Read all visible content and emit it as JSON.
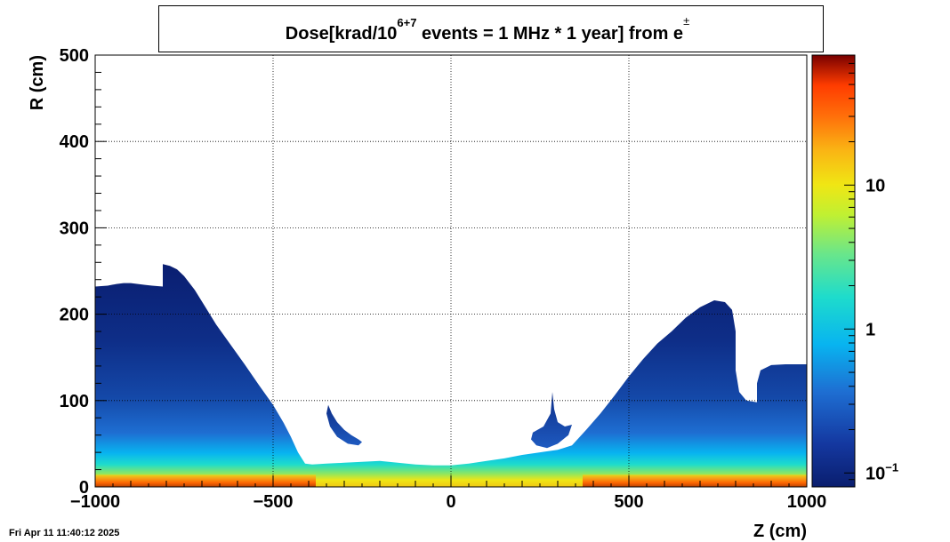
{
  "chart_data": {
    "type": "heatmap",
    "title": {
      "main": "Dose[krad/10",
      "sup": "6+7",
      "rest": " events = 1 MHz * 1 year] from e",
      "charge": "±"
    },
    "xlabel": "Z (cm)",
    "ylabel": "R (cm)",
    "xlim": [
      -1000,
      1000
    ],
    "ylim": [
      0,
      500
    ],
    "x_ticks": [
      {
        "v": -1000,
        "label": "−1000"
      },
      {
        "v": -500,
        "label": "−500"
      },
      {
        "v": 0,
        "label": "0"
      },
      {
        "v": 500,
        "label": "500"
      },
      {
        "v": 1000,
        "label": "1000"
      }
    ],
    "y_ticks": [
      {
        "v": 0,
        "label": "0"
      },
      {
        "v": 100,
        "label": "100"
      },
      {
        "v": 200,
        "label": "200"
      },
      {
        "v": 300,
        "label": "300"
      },
      {
        "v": 400,
        "label": "400"
      },
      {
        "v": 500,
        "label": "500"
      }
    ],
    "grid": true,
    "colorbar": {
      "scale": "log",
      "range": [
        0.08,
        80
      ],
      "labels": [
        {
          "v": 0.1,
          "base": "10",
          "exp": "−1"
        },
        {
          "v": 1,
          "base": "1",
          "exp": ""
        },
        {
          "v": 10,
          "base": "10",
          "exp": ""
        }
      ]
    },
    "regions": [
      {
        "name": "left-endcap",
        "outline_zr": [
          [
            -1000,
            0
          ],
          [
            -1000,
            232
          ],
          [
            -965,
            233
          ],
          [
            -940,
            235
          ],
          [
            -920,
            236
          ],
          [
            -900,
            236
          ],
          [
            -880,
            235
          ],
          [
            -860,
            234
          ],
          [
            -840,
            233
          ],
          [
            -810,
            232
          ],
          [
            -810,
            258
          ],
          [
            -790,
            256
          ],
          [
            -770,
            252
          ],
          [
            -750,
            244
          ],
          [
            -720,
            228
          ],
          [
            -690,
            208
          ],
          [
            -660,
            188
          ],
          [
            -620,
            165
          ],
          [
            -580,
            142
          ],
          [
            -540,
            118
          ],
          [
            -500,
            95
          ],
          [
            -470,
            74
          ],
          [
            -450,
            58
          ],
          [
            -430,
            40
          ],
          [
            -410,
            27
          ],
          [
            -390,
            26
          ],
          [
            -350,
            27
          ],
          [
            -300,
            28
          ],
          [
            -250,
            29
          ],
          [
            -200,
            30
          ],
          [
            -150,
            28
          ],
          [
            -100,
            26
          ],
          [
            -50,
            25
          ],
          [
            0,
            25
          ],
          [
            0,
            0
          ]
        ]
      },
      {
        "name": "right-endcap",
        "outline_zr": [
          [
            0,
            0
          ],
          [
            0,
            25
          ],
          [
            50,
            27
          ],
          [
            100,
            30
          ],
          [
            150,
            33
          ],
          [
            200,
            37
          ],
          [
            250,
            40
          ],
          [
            300,
            43
          ],
          [
            340,
            48
          ],
          [
            380,
            66
          ],
          [
            420,
            85
          ],
          [
            460,
            106
          ],
          [
            500,
            128
          ],
          [
            540,
            148
          ],
          [
            580,
            166
          ],
          [
            620,
            180
          ],
          [
            660,
            196
          ],
          [
            700,
            208
          ],
          [
            740,
            216
          ],
          [
            770,
            214
          ],
          [
            790,
            205
          ],
          [
            800,
            180
          ],
          [
            800,
            135
          ],
          [
            810,
            110
          ],
          [
            830,
            100
          ],
          [
            860,
            98
          ],
          [
            860,
            120
          ],
          [
            870,
            135
          ],
          [
            900,
            141
          ],
          [
            940,
            142
          ],
          [
            1000,
            142
          ],
          [
            1000,
            0
          ]
        ]
      },
      {
        "name": "left-island",
        "outline_zr": [
          [
            -345,
            95
          ],
          [
            -335,
            85
          ],
          [
            -320,
            75
          ],
          [
            -300,
            66
          ],
          [
            -280,
            60
          ],
          [
            -260,
            55
          ],
          [
            -250,
            52
          ],
          [
            -260,
            48
          ],
          [
            -290,
            50
          ],
          [
            -320,
            58
          ],
          [
            -340,
            70
          ],
          [
            -350,
            85
          ]
        ]
      },
      {
        "name": "right-island",
        "outline_zr": [
          [
            230,
            63
          ],
          [
            260,
            70
          ],
          [
            280,
            85
          ],
          [
            285,
            110
          ],
          [
            290,
            90
          ],
          [
            300,
            75
          ],
          [
            320,
            70
          ],
          [
            340,
            72
          ],
          [
            330,
            60
          ],
          [
            300,
            50
          ],
          [
            270,
            45
          ],
          [
            240,
            48
          ],
          [
            225,
            55
          ]
        ]
      }
    ],
    "hot_band": {
      "name": "beamline-hot-band",
      "r_range": [
        0,
        14
      ],
      "z_segments": [
        [
          -1000,
          -380
        ],
        [
          370,
          1000
        ]
      ],
      "peak_dose_krad": 40
    }
  },
  "footer": {
    "timestamp": "Fri Apr 11 11:40:12 2025"
  }
}
